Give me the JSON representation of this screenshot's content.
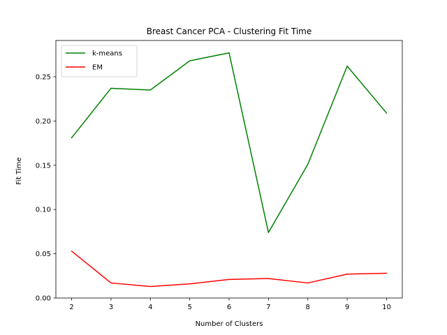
{
  "chart_data": {
    "type": "line",
    "title": "Breast Cancer PCA - Clustering Fit Time",
    "xlabel": "Number of Clusters",
    "ylabel": "Fit Time",
    "x": [
      2,
      3,
      4,
      5,
      6,
      7,
      8,
      9,
      10
    ],
    "xlim": [
      1.6,
      10.4
    ],
    "ylim": [
      0.0,
      0.291
    ],
    "xticks": [
      "2",
      "3",
      "4",
      "5",
      "6",
      "7",
      "8",
      "9",
      "10"
    ],
    "yticks": [
      "0.00",
      "0.05",
      "0.10",
      "0.15",
      "0.20",
      "0.25"
    ],
    "ytick_values": [
      0.0,
      0.05,
      0.1,
      0.15,
      0.2,
      0.25
    ],
    "grid": false,
    "legend_position": "top-left",
    "series": [
      {
        "name": "k-means",
        "color": "#008000",
        "values": [
          0.181,
          0.237,
          0.235,
          0.268,
          0.277,
          0.074,
          0.151,
          0.262,
          0.209
        ]
      },
      {
        "name": "EM",
        "color": "#ff0000",
        "values": [
          0.053,
          0.017,
          0.013,
          0.016,
          0.021,
          0.022,
          0.017,
          0.027,
          0.028
        ]
      }
    ]
  }
}
